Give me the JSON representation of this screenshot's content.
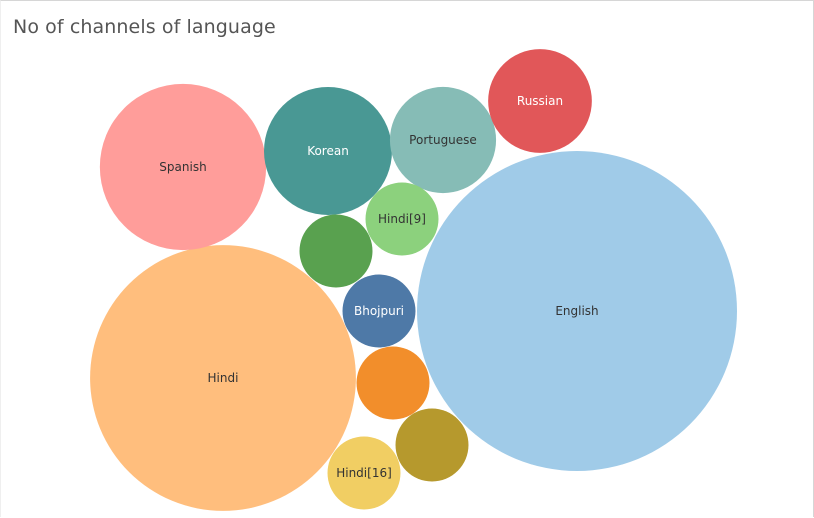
{
  "chart_data": {
    "type": "bubble",
    "title": "No of channels of language",
    "bubbles": [
      {
        "label": "English",
        "color": "#a0cbe8",
        "text_color": "#333333",
        "size": 100
      },
      {
        "label": "Hindi",
        "color": "#ffbe7d",
        "text_color": "#333333",
        "size": 69
      },
      {
        "label": "Spanish",
        "color": "#ff9d9a",
        "text_color": "#333333",
        "size": 27
      },
      {
        "label": "Korean",
        "color": "#499894",
        "text_color": "#ffffff",
        "size": 16
      },
      {
        "label": "Portuguese",
        "color": "#86bcb6",
        "text_color": "#333333",
        "size": 11
      },
      {
        "label": "Russian",
        "color": "#e15759",
        "text_color": "#ffffff",
        "size": 10.5
      },
      {
        "label": "Hindi[9]",
        "color": "#8cd17d",
        "text_color": "#333333",
        "size": 5.2
      },
      {
        "label": "",
        "color": "#59a14f",
        "text_color": "#ffffff",
        "size": 5.2
      },
      {
        "label": "Bhojpuri",
        "color": "#4e79a7",
        "text_color": "#ffffff",
        "size": 5.2
      },
      {
        "label": "",
        "color": "#f28e2b",
        "text_color": "#ffffff",
        "size": 5.2
      },
      {
        "label": "",
        "color": "#b6992d",
        "text_color": "#ffffff",
        "size": 5.2
      },
      {
        "label": "Hindi[16]",
        "color": "#f1ce63",
        "text_color": "#333333",
        "size": 5.2
      }
    ]
  }
}
